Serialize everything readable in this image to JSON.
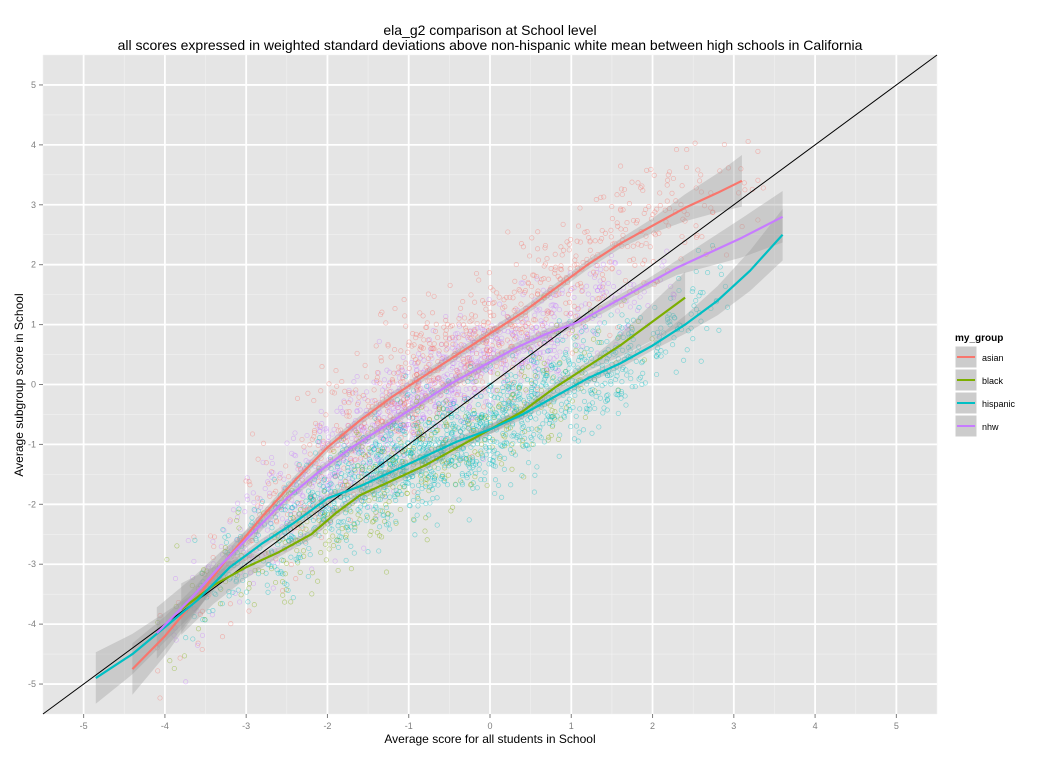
{
  "chart_data": {
    "type": "scatter",
    "title": "ela_g2 comparison at School level",
    "subtitle": "all scores expressed in weighted standard deviations above non-hispanic white mean between high schools in California",
    "xlabel": "Average score for all students in School",
    "ylabel": "Average subgroup score in School",
    "xlim": [
      -5.5,
      5.5
    ],
    "ylim": [
      -5.5,
      5.5
    ],
    "x_ticks": [
      "-5",
      "-4",
      "-3",
      "-2",
      "-1",
      "0",
      "1",
      "2",
      "3",
      "4",
      "5"
    ],
    "y_ticks": [
      "-5",
      "-4",
      "-3",
      "-2",
      "-1",
      "0",
      "1",
      "2",
      "3",
      "4",
      "5"
    ],
    "grid": true,
    "reference_line": {
      "type": "identity",
      "color": "#000000"
    },
    "legend": {
      "title": "my_group",
      "position": "right",
      "entries": [
        "asian",
        "black",
        "hispanic",
        "nhw"
      ]
    },
    "series": [
      {
        "name": "asian",
        "color": "#F8766D",
        "smooth": [
          [
            -4.4,
            -4.75
          ],
          [
            -4.0,
            -4.2
          ],
          [
            -3.6,
            -3.55
          ],
          [
            -3.2,
            -2.85
          ],
          [
            -2.8,
            -2.2
          ],
          [
            -2.4,
            -1.6
          ],
          [
            -2.0,
            -1.05
          ],
          [
            -1.6,
            -0.6
          ],
          [
            -1.2,
            -0.2
          ],
          [
            -0.8,
            0.15
          ],
          [
            -0.4,
            0.5
          ],
          [
            0.0,
            0.85
          ],
          [
            0.4,
            1.2
          ],
          [
            0.8,
            1.6
          ],
          [
            1.2,
            2.0
          ],
          [
            1.6,
            2.35
          ],
          [
            2.0,
            2.65
          ],
          [
            2.4,
            2.95
          ],
          [
            2.8,
            3.2
          ],
          [
            3.1,
            3.4
          ]
        ],
        "cloud": {
          "x_range": [
            -3.5,
            2.8
          ],
          "center_offset": 0.75,
          "spread": 0.55,
          "count": 900
        }
      },
      {
        "name": "black",
        "color": "#7CAE00",
        "smooth": [
          [
            -3.8,
            -3.75
          ],
          [
            -3.4,
            -3.35
          ],
          [
            -3.0,
            -3.05
          ],
          [
            -2.6,
            -2.8
          ],
          [
            -2.2,
            -2.5
          ],
          [
            -1.9,
            -2.15
          ],
          [
            -1.6,
            -1.85
          ],
          [
            -1.2,
            -1.6
          ],
          [
            -0.8,
            -1.35
          ],
          [
            -0.4,
            -1.05
          ],
          [
            0.0,
            -0.75
          ],
          [
            0.4,
            -0.45
          ],
          [
            0.8,
            -0.05
          ],
          [
            1.2,
            0.3
          ],
          [
            1.6,
            0.65
          ],
          [
            2.0,
            1.05
          ],
          [
            2.4,
            1.45
          ]
        ],
        "cloud": {
          "x_range": [
            -3.5,
            1.5
          ],
          "center_offset": -0.45,
          "spread": 0.5,
          "count": 450
        }
      },
      {
        "name": "hispanic",
        "color": "#00BFC4",
        "smooth": [
          [
            -4.85,
            -4.9
          ],
          [
            -4.4,
            -4.5
          ],
          [
            -4.0,
            -4.05
          ],
          [
            -3.6,
            -3.6
          ],
          [
            -3.2,
            -3.05
          ],
          [
            -2.8,
            -2.65
          ],
          [
            -2.4,
            -2.3
          ],
          [
            -2.0,
            -1.9
          ],
          [
            -1.6,
            -1.7
          ],
          [
            -1.2,
            -1.45
          ],
          [
            -0.8,
            -1.2
          ],
          [
            -0.4,
            -0.95
          ],
          [
            0.0,
            -0.75
          ],
          [
            0.4,
            -0.5
          ],
          [
            0.8,
            -0.2
          ],
          [
            1.2,
            0.1
          ],
          [
            1.6,
            0.35
          ],
          [
            2.0,
            0.65
          ],
          [
            2.4,
            1.0
          ],
          [
            2.8,
            1.4
          ],
          [
            3.2,
            1.9
          ],
          [
            3.6,
            2.5
          ]
        ],
        "cloud": {
          "x_range": [
            -3.2,
            2.4
          ],
          "center_offset": -0.35,
          "spread": 0.45,
          "count": 1400
        }
      },
      {
        "name": "nhw",
        "color": "#C77CFF",
        "smooth": [
          [
            -4.1,
            -4.15
          ],
          [
            -3.7,
            -3.6
          ],
          [
            -3.3,
            -3.0
          ],
          [
            -2.9,
            -2.45
          ],
          [
            -2.5,
            -1.9
          ],
          [
            -2.1,
            -1.45
          ],
          [
            -1.7,
            -1.05
          ],
          [
            -1.3,
            -0.7
          ],
          [
            -0.9,
            -0.35
          ],
          [
            -0.5,
            0.0
          ],
          [
            -0.1,
            0.3
          ],
          [
            0.3,
            0.6
          ],
          [
            0.7,
            0.85
          ],
          [
            1.1,
            1.05
          ],
          [
            1.5,
            1.35
          ],
          [
            1.9,
            1.65
          ],
          [
            2.3,
            1.95
          ],
          [
            2.7,
            2.2
          ],
          [
            3.1,
            2.45
          ],
          [
            3.6,
            2.8
          ]
        ],
        "cloud": {
          "x_range": [
            -3.3,
            1.8
          ],
          "center_offset": 0.35,
          "spread": 0.45,
          "count": 1100
        }
      }
    ]
  }
}
